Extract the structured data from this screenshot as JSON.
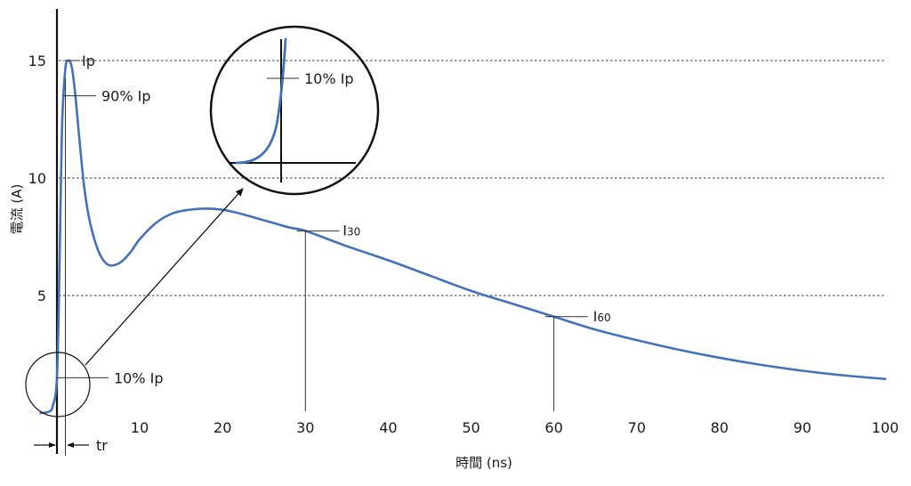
{
  "chart_data": {
    "type": "line",
    "xlabel": "時間 (ns)",
    "ylabel": "電流 (A)",
    "xlim": [
      0,
      100
    ],
    "ylim": [
      0,
      16.5
    ],
    "x_ticks": [
      10,
      20,
      30,
      40,
      50,
      60,
      70,
      80,
      90,
      100
    ],
    "y_ticks": [
      5,
      10,
      15
    ],
    "grid": "horizontal-dotted",
    "series": [
      {
        "color": "#4472b8",
        "x": [
          -2,
          -1,
          -0.5,
          0,
          0.3,
          0.6,
          1,
          1.4,
          1.8,
          2.2,
          2.7,
          3.3,
          4,
          5,
          6,
          7,
          8,
          9,
          10,
          12,
          14,
          16,
          18,
          20,
          22,
          25,
          28,
          30,
          35,
          40,
          45,
          50,
          55,
          60,
          65,
          70,
          75,
          80,
          85,
          90,
          95,
          100
        ],
        "y": [
          0,
          0.05,
          0.3,
          1.5,
          6,
          12,
          14.6,
          15,
          14.7,
          13.6,
          11.7,
          9.6,
          8.1,
          6.9,
          6.35,
          6.3,
          6.5,
          6.9,
          7.4,
          8.1,
          8.5,
          8.65,
          8.7,
          8.65,
          8.5,
          8.2,
          7.9,
          7.75,
          7.1,
          6.5,
          5.85,
          5.2,
          4.65,
          4.1,
          3.55,
          3.1,
          2.7,
          2.35,
          2.05,
          1.8,
          1.6,
          1.45
        ]
      }
    ],
    "annotations": {
      "ip": "Ip",
      "p90": "90% Ip",
      "p10": "10% Ip",
      "inset_p10": "10% Ip",
      "i30_main": "I",
      "i30_sub": "30",
      "i60_main": "I",
      "i60_sub": "60",
      "tr": "tr"
    },
    "marker_values": {
      "ip": 15,
      "p90": 13.5,
      "p10": 1.5,
      "i30_t": 30,
      "i30": 7.75,
      "i60_t": 60,
      "i60": 4.1
    }
  }
}
